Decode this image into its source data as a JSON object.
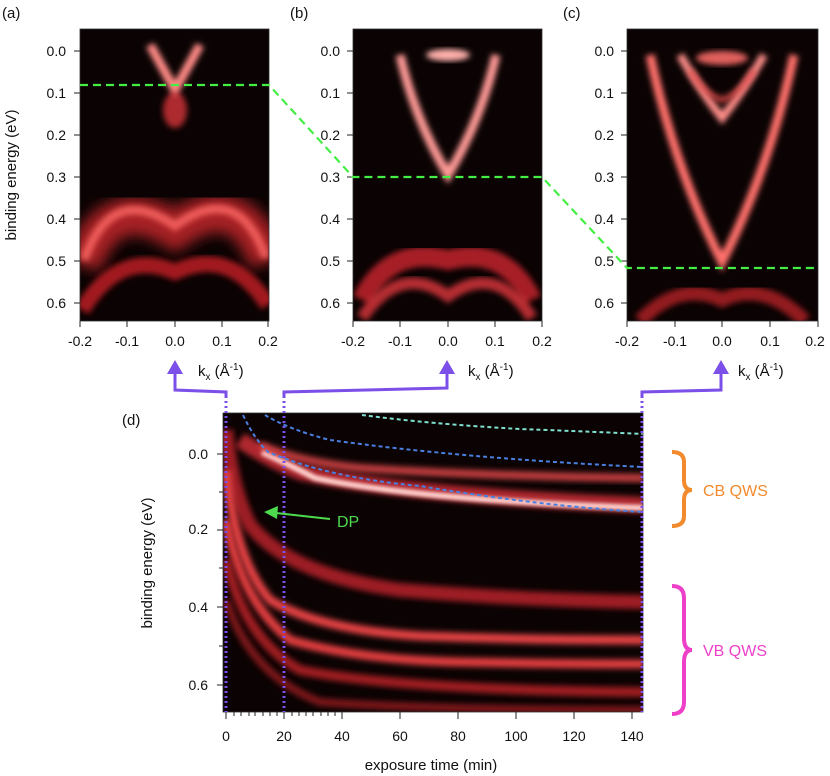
{
  "panels_top": [
    {
      "label": "(a)",
      "ylabel": "binding energy (eV)",
      "xticks": [
        "-0.2",
        "-0.1",
        "0.0",
        "0.1",
        "0.2"
      ],
      "yticks": [
        "0.0",
        "0.1",
        "0.2",
        "0.3",
        "0.4",
        "0.5",
        "0.6"
      ],
      "xlabel_k": "k",
      "xlabel_sub": "x",
      "xlabel_unit_open": " (Å",
      "xlabel_sup": "-1",
      "xlabel_unit_close": ")"
    },
    {
      "label": "(b)",
      "xticks": [
        "-0.2",
        "-0.1",
        "0.0",
        "0.1",
        "0.2"
      ],
      "yticks": [
        "0.0",
        "0.1",
        "0.2",
        "0.3",
        "0.4",
        "0.5",
        "0.6"
      ],
      "xlabel_k": "k",
      "xlabel_sub": "x",
      "xlabel_unit_open": " (Å",
      "xlabel_sup": "-1",
      "xlabel_unit_close": ")"
    },
    {
      "label": "(c)",
      "xticks": [
        "-0.2",
        "-0.1",
        "0.0",
        "0.1",
        "0.2"
      ],
      "yticks": [
        "0.0",
        "0.1",
        "0.2",
        "0.3",
        "0.4",
        "0.5",
        "0.6"
      ],
      "xlabel_k": "k",
      "xlabel_sub": "x",
      "xlabel_unit_open": " (Å",
      "xlabel_sup": "-1",
      "xlabel_unit_close": ")"
    }
  ],
  "panel_d": {
    "label": "(d)",
    "ylabel": "binding energy (eV)",
    "xlabel": "exposure time (min)",
    "xticks": [
      "0",
      "20",
      "40",
      "60",
      "80",
      "100",
      "120",
      "140"
    ],
    "yticks": [
      "0.0",
      "0.2",
      "0.4",
      "0.6"
    ],
    "dp_label": "DP",
    "cb_label": "CB  QWS",
    "vb_label": "VB  QWS"
  },
  "colors": {
    "dashed_line": "#44ee44",
    "arrow": "#7b4fe8",
    "cb": "#f28a2e",
    "vb": "#ee3fc8",
    "dp": "#4ddb4d",
    "band_blue": "#4a7fe0",
    "band_cyan": "#7fe0d0"
  },
  "chart_data": {
    "type": "heatmap",
    "panels": [
      {
        "name": "(a)",
        "xlabel": "kx (Å-1)",
        "ylabel": "binding energy (eV)",
        "xlim": [
          -0.2,
          0.2
        ],
        "ylim": [
          0.65,
          -0.05
        ],
        "dirac_point_eV": 0.08
      },
      {
        "name": "(b)",
        "xlabel": "kx (Å-1)",
        "xlim": [
          -0.2,
          0.2
        ],
        "ylim": [
          0.65,
          -0.05
        ],
        "dirac_point_eV": 0.3
      },
      {
        "name": "(c)",
        "xlabel": "kx (Å-1)",
        "xlim": [
          -0.2,
          0.2
        ],
        "ylim": [
          0.65,
          -0.05
        ],
        "dirac_point_eV": 0.51
      },
      {
        "name": "(d)",
        "xlabel": "exposure time (min)",
        "ylabel": "binding energy (eV)",
        "xlim": [
          0,
          147
        ],
        "ylim": [
          0.67,
          -0.09
        ],
        "marked_times_min": [
          0,
          20,
          142
        ],
        "annotations": [
          "DP",
          "CB  QWS",
          "VB  QWS"
        ]
      }
    ]
  }
}
